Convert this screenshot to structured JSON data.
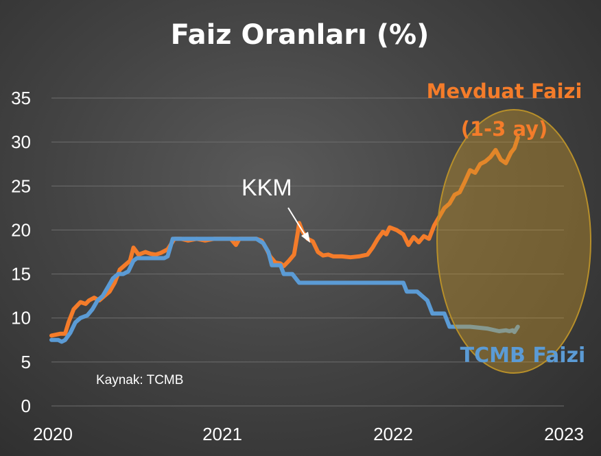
{
  "chart_data": {
    "type": "line",
    "title": "Faiz Oranları (%)",
    "xlabel": "",
    "ylabel": "",
    "xlim": [
      2020.0,
      2023.0
    ],
    "ylim": [
      0,
      35
    ],
    "yticks": [
      0,
      5,
      10,
      15,
      20,
      25,
      30,
      35
    ],
    "xticks": [
      "2020",
      "2021",
      "2022",
      "2023"
    ],
    "grid": true,
    "source": "Kaynak: TCMB",
    "annotations": {
      "kkm": "KKM",
      "deposit_label_line1": "Mevduat Faizi",
      "deposit_label_line2": "(1-3 ay)",
      "policy_label": "TCMB Faizi"
    },
    "series": [
      {
        "name": "Mevduat Faizi (1-3 ay)",
        "color": "#f47c2a",
        "points": [
          [
            2020.0,
            8.0
          ],
          [
            2020.05,
            8.2
          ],
          [
            2020.08,
            8.2
          ],
          [
            2020.1,
            9.5
          ],
          [
            2020.13,
            11.0
          ],
          [
            2020.17,
            11.8
          ],
          [
            2020.2,
            11.6
          ],
          [
            2020.22,
            12.0
          ],
          [
            2020.25,
            12.3
          ],
          [
            2020.28,
            12.0
          ],
          [
            2020.31,
            12.5
          ],
          [
            2020.34,
            13.0
          ],
          [
            2020.37,
            14.0
          ],
          [
            2020.4,
            15.5
          ],
          [
            2020.43,
            16.0
          ],
          [
            2020.46,
            16.5
          ],
          [
            2020.48,
            18.0
          ],
          [
            2020.51,
            17.2
          ],
          [
            2020.55,
            17.5
          ],
          [
            2020.58,
            17.3
          ],
          [
            2020.61,
            17.2
          ],
          [
            2020.64,
            17.4
          ],
          [
            2020.68,
            17.8
          ],
          [
            2020.72,
            19.0
          ],
          [
            2020.76,
            19.0
          ],
          [
            2020.8,
            18.8
          ],
          [
            2020.85,
            19.0
          ],
          [
            2020.9,
            18.8
          ],
          [
            2020.95,
            19.0
          ],
          [
            2021.0,
            19.0
          ],
          [
            2021.05,
            19.0
          ],
          [
            2021.08,
            18.3
          ],
          [
            2021.1,
            19.0
          ],
          [
            2021.15,
            19.0
          ],
          [
            2021.2,
            19.0
          ],
          [
            2021.23,
            18.8
          ],
          [
            2021.26,
            17.8
          ],
          [
            2021.28,
            17.0
          ],
          [
            2021.31,
            16.3
          ],
          [
            2021.34,
            16.2
          ],
          [
            2021.36,
            15.9
          ],
          [
            2021.39,
            16.5
          ],
          [
            2021.42,
            17.2
          ],
          [
            2021.44,
            19.5
          ],
          [
            2021.45,
            20.8
          ],
          [
            2021.47,
            19.8
          ],
          [
            2021.5,
            19.0
          ],
          [
            2021.53,
            18.7
          ],
          [
            2021.56,
            17.5
          ],
          [
            2021.59,
            17.1
          ],
          [
            2021.62,
            17.2
          ],
          [
            2021.65,
            17.0
          ],
          [
            2021.7,
            17.0
          ],
          [
            2021.75,
            16.9
          ],
          [
            2021.8,
            17.0
          ],
          [
            2021.85,
            17.2
          ],
          [
            2021.88,
            18.0
          ],
          [
            2021.91,
            19.0
          ],
          [
            2021.94,
            19.8
          ],
          [
            2021.96,
            19.5
          ],
          [
            2021.98,
            20.3
          ],
          [
            2022.02,
            20.0
          ],
          [
            2022.06,
            19.5
          ],
          [
            2022.09,
            18.3
          ],
          [
            2022.12,
            19.2
          ],
          [
            2022.15,
            18.6
          ],
          [
            2022.18,
            19.3
          ],
          [
            2022.21,
            19.0
          ],
          [
            2022.24,
            20.5
          ],
          [
            2022.27,
            21.5
          ],
          [
            2022.3,
            22.5
          ],
          [
            2022.33,
            23.0
          ],
          [
            2022.36,
            24.0
          ],
          [
            2022.39,
            24.3
          ],
          [
            2022.42,
            25.5
          ],
          [
            2022.45,
            26.8
          ],
          [
            2022.48,
            26.5
          ],
          [
            2022.51,
            27.5
          ],
          [
            2022.54,
            27.8
          ],
          [
            2022.57,
            28.3
          ],
          [
            2022.6,
            29.1
          ],
          [
            2022.63,
            28.0
          ],
          [
            2022.66,
            27.6
          ],
          [
            2022.69,
            28.8
          ],
          [
            2022.71,
            29.3
          ],
          [
            2022.73,
            30.5
          ]
        ]
      },
      {
        "name": "TCMB Faizi",
        "color": "#5b9bd5",
        "points": [
          [
            2020.0,
            7.5
          ],
          [
            2020.04,
            7.5
          ],
          [
            2020.06,
            7.3
          ],
          [
            2020.08,
            7.5
          ],
          [
            2020.11,
            8.3
          ],
          [
            2020.14,
            9.5
          ],
          [
            2020.17,
            10.0
          ],
          [
            2020.21,
            10.3
          ],
          [
            2020.24,
            11.0
          ],
          [
            2020.27,
            12.0
          ],
          [
            2020.3,
            12.5
          ],
          [
            2020.33,
            13.5
          ],
          [
            2020.36,
            14.5
          ],
          [
            2020.39,
            15.0
          ],
          [
            2020.42,
            15.0
          ],
          [
            2020.45,
            15.3
          ],
          [
            2020.48,
            16.5
          ],
          [
            2020.5,
            16.8
          ],
          [
            2020.58,
            16.8
          ],
          [
            2020.66,
            16.8
          ],
          [
            2020.68,
            17.0
          ],
          [
            2020.71,
            19.0
          ],
          [
            2020.8,
            19.0
          ],
          [
            2020.9,
            19.0
          ],
          [
            2021.0,
            19.0
          ],
          [
            2021.1,
            19.0
          ],
          [
            2021.2,
            19.0
          ],
          [
            2021.24,
            18.5
          ],
          [
            2021.27,
            17.5
          ],
          [
            2021.29,
            16.0
          ],
          [
            2021.34,
            16.0
          ],
          [
            2021.36,
            15.0
          ],
          [
            2021.41,
            15.0
          ],
          [
            2021.43,
            14.5
          ],
          [
            2021.45,
            14.0
          ],
          [
            2021.6,
            14.0
          ],
          [
            2021.8,
            14.0
          ],
          [
            2022.0,
            14.0
          ],
          [
            2022.06,
            14.0
          ],
          [
            2022.08,
            13.0
          ],
          [
            2022.14,
            13.0
          ],
          [
            2022.17,
            12.5
          ],
          [
            2022.2,
            12.0
          ],
          [
            2022.23,
            10.5
          ],
          [
            2022.3,
            10.5
          ],
          [
            2022.33,
            9.0
          ],
          [
            2022.45,
            9.0
          ],
          [
            2022.55,
            8.8
          ],
          [
            2022.62,
            8.5
          ],
          [
            2022.66,
            8.6
          ],
          [
            2022.68,
            8.5
          ],
          [
            2022.7,
            8.6
          ],
          [
            2022.71,
            8.4
          ],
          [
            2022.73,
            9.0
          ]
        ]
      }
    ]
  }
}
